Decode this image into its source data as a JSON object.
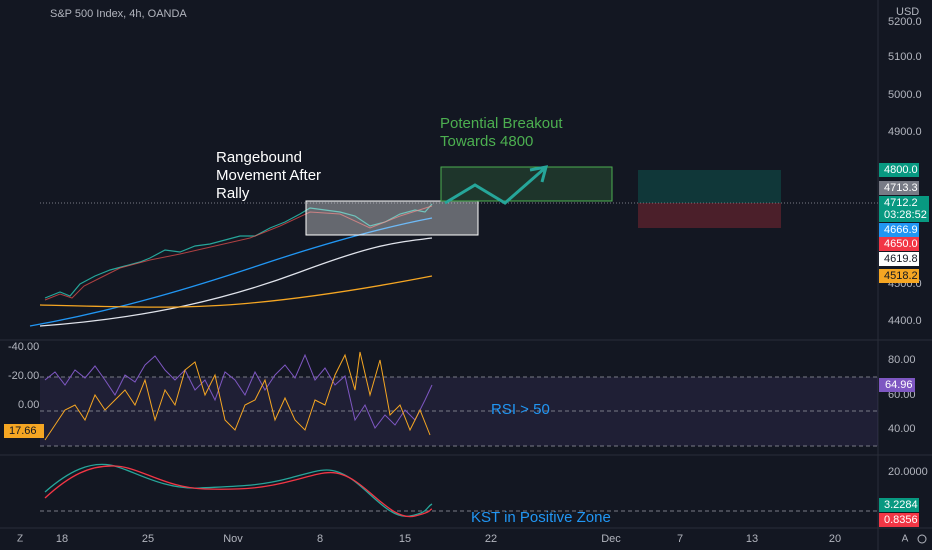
{
  "header": {
    "symbol": "S&P 500 Index, 4h, OANDA",
    "currency": "USD"
  },
  "price_axis": {
    "labels": [
      "5200.0",
      "5100.0",
      "5000.0",
      "4900.0",
      "4500.0",
      "4400.0"
    ]
  },
  "price_badges": {
    "target": "4800.0",
    "high": "4713.3",
    "last": "4712.2",
    "countdown": "03:28:52",
    "ma_fast": "4666.9",
    "stop": "4650.0",
    "ma_mid": "4619.8",
    "ma_slow": "4518.2"
  },
  "annotations": {
    "rangebound": [
      "Rangebound",
      "Movement After",
      "Rally"
    ],
    "breakout": [
      "Potential Breakout",
      "Towards 4800"
    ],
    "rsi": "RSI > 50",
    "kst": "KST in Positive Zone"
  },
  "oscillator_axis": {
    "left": [
      "-40.00",
      "-20.00",
      "0.00"
    ],
    "left_badge": "17.66",
    "right": [
      "80.00",
      "60.00",
      "40.00"
    ],
    "right_badge": "64.96"
  },
  "kst_axis": {
    "labels": [
      "20.0000"
    ],
    "badges": [
      "3.2284",
      "0.8356"
    ]
  },
  "time_axis": {
    "labels": [
      "18",
      "25",
      "Nov",
      "8",
      "15",
      "22",
      "Dec",
      "7",
      "13",
      "20"
    ]
  },
  "corner_icons": {
    "left": "Z",
    "right": "A"
  }
}
